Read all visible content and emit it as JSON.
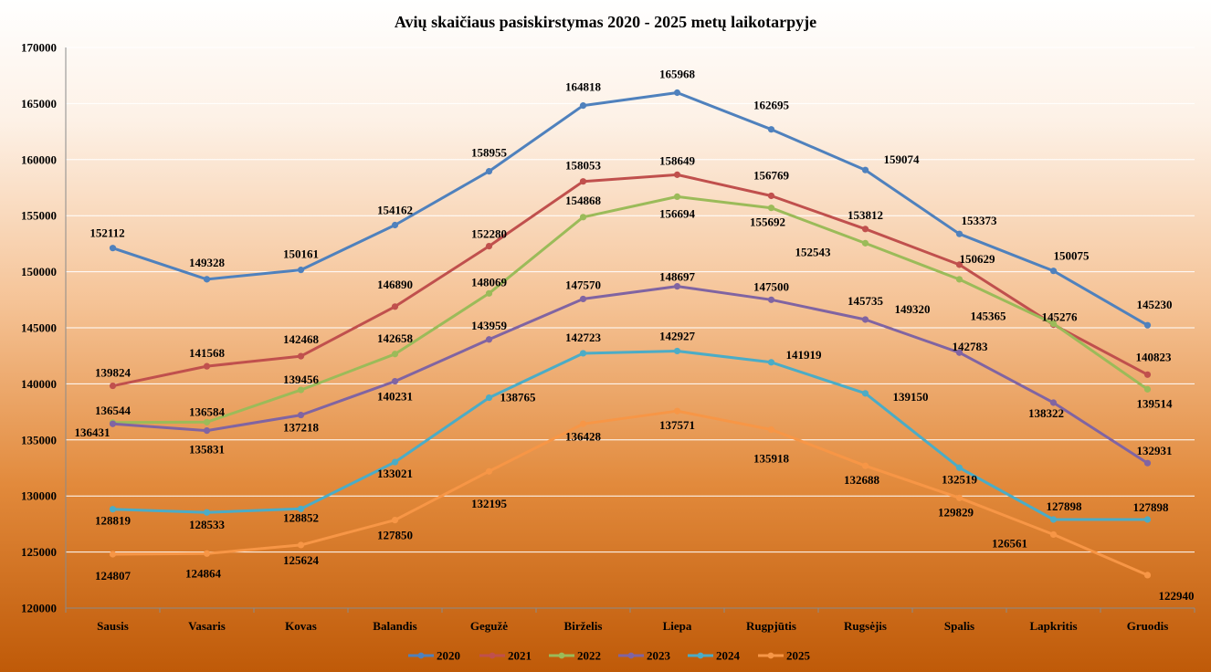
{
  "chart_data": {
    "type": "line",
    "title": "Avių skaičiaus pasiskirstymas  2020 - 2025 metų laikotarpyje",
    "xlabel": "",
    "ylabel": "",
    "ylim": [
      120000,
      170000
    ],
    "yticks": [
      120000,
      125000,
      130000,
      135000,
      140000,
      145000,
      150000,
      155000,
      160000,
      165000,
      170000
    ],
    "grid": true,
    "legend_position": "bottom",
    "categories": [
      "Sausis",
      "Vasaris",
      "Kovas",
      "Balandis",
      "Gegužė",
      "Birželis",
      "Liepa",
      "Rugpjūtis",
      "Rugsėjis",
      "Spalis",
      "Lapkritis",
      "Gruodis"
    ],
    "series": [
      {
        "name": "2020",
        "color": "#4f81bd",
        "values": [
          152112,
          149328,
          150161,
          154162,
          158955,
          164818,
          165968,
          162695,
          159074,
          153373,
          150075,
          145230
        ]
      },
      {
        "name": "2021",
        "color": "#c0504d",
        "values": [
          139824,
          141568,
          142468,
          146890,
          152280,
          158053,
          158649,
          156769,
          153812,
          150629,
          145276,
          140823
        ]
      },
      {
        "name": "2022",
        "color": "#9bbb59",
        "values": [
          136544,
          136584,
          139456,
          142658,
          148069,
          154868,
          156694,
          155692,
          152543,
          149320,
          145365,
          139514
        ]
      },
      {
        "name": "2023",
        "color": "#8064a2",
        "values": [
          136431,
          135831,
          137218,
          140231,
          143959,
          147570,
          148697,
          147500,
          145735,
          142783,
          138322,
          132931
        ]
      },
      {
        "name": "2024",
        "color": "#4bacc6",
        "values": [
          128819,
          128533,
          128852,
          133021,
          138765,
          142723,
          142927,
          141919,
          139150,
          132519,
          127898,
          127898
        ]
      },
      {
        "name": "2025",
        "color": "#f79646",
        "values": [
          124807,
          124864,
          125624,
          127850,
          132195,
          136428,
          137571,
          135918,
          132688,
          129829,
          126561,
          122940
        ]
      }
    ]
  }
}
